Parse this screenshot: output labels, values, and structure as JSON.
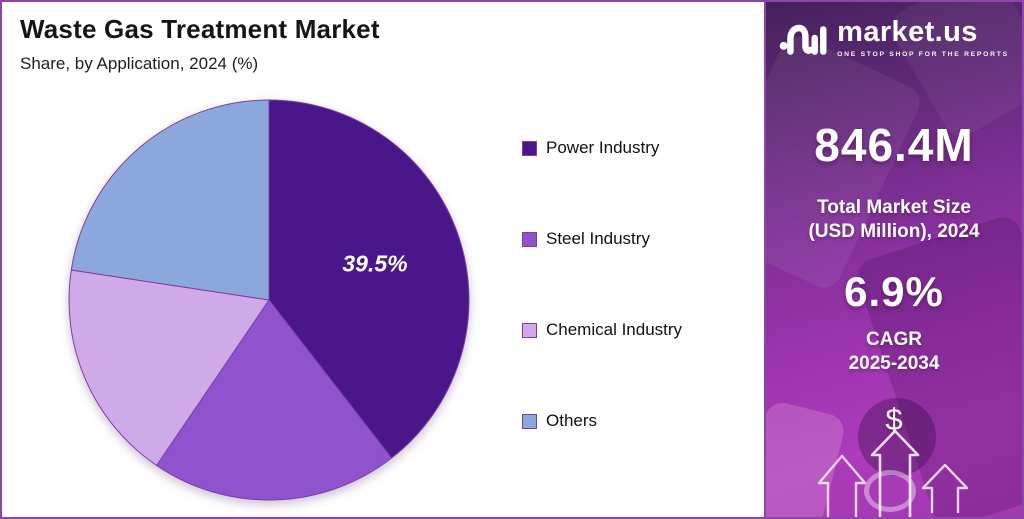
{
  "chart_data": {
    "type": "pie",
    "title": "Waste Gas Treatment Market",
    "subtitle": "Share, by Application, 2024 (%)",
    "start_angle_deg": 0,
    "direction": "clockwise",
    "legend_position": "right",
    "slices": [
      {
        "label": "Power Industry",
        "value": 39.5,
        "color": "#4A178A",
        "data_label": "39.5%"
      },
      {
        "label": "Steel Industry",
        "value": 20.0,
        "color": "#8F53CD",
        "data_label": null
      },
      {
        "label": "Chemical Industry",
        "value": 17.9,
        "color": "#D0A9E9",
        "data_label": null
      },
      {
        "label": "Others",
        "value": 22.6,
        "color": "#8CA7DC",
        "data_label": null
      }
    ]
  },
  "sidebar": {
    "logo": {
      "brand": "market.us",
      "tagline": "ONE STOP SHOP FOR THE REPORTS"
    },
    "market_size_value": "846.4M",
    "market_size_label_line1": "Total Market Size",
    "market_size_label_line2": "(USD Million), 2024",
    "cagr_value": "6.9%",
    "cagr_label_line1": "CAGR",
    "cagr_label_line2": "2025-2034",
    "dollar_symbol": "$"
  },
  "colors": {
    "pie_stroke": "#7E3FA5",
    "frame_border": "#8E44AD",
    "sidebar_top": "#45215C",
    "sidebar_bottom": "#AC3CBA",
    "title_text": "#151515",
    "label_on_slice": "#FFFFFF"
  }
}
